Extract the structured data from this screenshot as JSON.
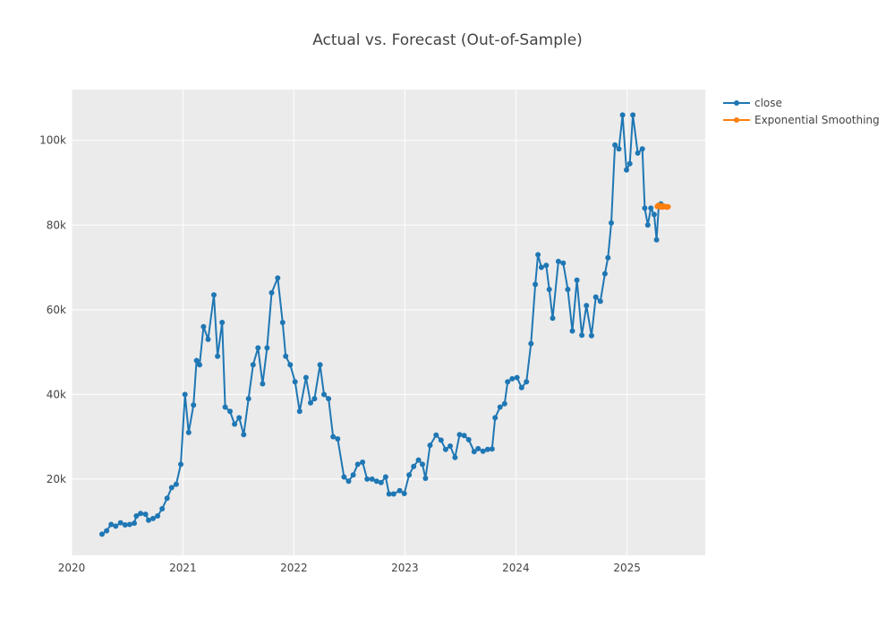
{
  "chart_data": {
    "type": "line",
    "title": "Actual vs. Forecast (Out-of-Sample)",
    "xlabel": "",
    "ylabel": "",
    "x_ticks": [
      "2020",
      "2021",
      "2022",
      "2023",
      "2024",
      "2025"
    ],
    "y_ticks": [
      "20k",
      "40k",
      "60k",
      "80k",
      "100k"
    ],
    "y_tick_values": [
      20000,
      40000,
      60000,
      80000,
      100000
    ],
    "xlim": [
      "2020-01-01",
      "2025-09-15"
    ],
    "ylim": [
      2000,
      112000
    ],
    "grid": true,
    "legend_position": "top-right",
    "series": [
      {
        "name": "close",
        "color": "#1f77b4",
        "mode": "lines+markers",
        "points": [
          [
            "2020-04-10",
            7000
          ],
          [
            "2020-04-25",
            7800
          ],
          [
            "2020-05-10",
            9300
          ],
          [
            "2020-05-25",
            8900
          ],
          [
            "2020-06-10",
            9700
          ],
          [
            "2020-06-25",
            9200
          ],
          [
            "2020-07-10",
            9300
          ],
          [
            "2020-07-25",
            9600
          ],
          [
            "2020-08-01",
            11300
          ],
          [
            "2020-08-15",
            11900
          ],
          [
            "2020-08-31",
            11700
          ],
          [
            "2020-09-10",
            10300
          ],
          [
            "2020-09-25",
            10700
          ],
          [
            "2020-10-10",
            11300
          ],
          [
            "2020-10-25",
            13000
          ],
          [
            "2020-11-10",
            15500
          ],
          [
            "2020-11-25",
            18000
          ],
          [
            "2020-12-10",
            18800
          ],
          [
            "2020-12-25",
            23500
          ],
          [
            "2021-01-08",
            40000
          ],
          [
            "2021-01-20",
            31000
          ],
          [
            "2021-02-05",
            37500
          ],
          [
            "2021-02-15",
            48000
          ],
          [
            "2021-02-25",
            47000
          ],
          [
            "2021-03-10",
            56000
          ],
          [
            "2021-03-25",
            53000
          ],
          [
            "2021-04-13",
            63500
          ],
          [
            "2021-04-25",
            49000
          ],
          [
            "2021-05-10",
            57000
          ],
          [
            "2021-05-20",
            37000
          ],
          [
            "2021-06-05",
            36000
          ],
          [
            "2021-06-20",
            33000
          ],
          [
            "2021-07-05",
            34500
          ],
          [
            "2021-07-20",
            30500
          ],
          [
            "2021-08-05",
            39000
          ],
          [
            "2021-08-20",
            47000
          ],
          [
            "2021-09-05",
            51000
          ],
          [
            "2021-09-20",
            42500
          ],
          [
            "2021-10-05",
            51000
          ],
          [
            "2021-10-20",
            64000
          ],
          [
            "2021-11-09",
            67500
          ],
          [
            "2021-11-25",
            57000
          ],
          [
            "2021-12-05",
            49000
          ],
          [
            "2021-12-20",
            47000
          ],
          [
            "2022-01-05",
            43000
          ],
          [
            "2022-01-20",
            36000
          ],
          [
            "2022-02-10",
            44000
          ],
          [
            "2022-02-25",
            38000
          ],
          [
            "2022-03-10",
            39000
          ],
          [
            "2022-03-28",
            47000
          ],
          [
            "2022-04-10",
            40000
          ],
          [
            "2022-04-25",
            39000
          ],
          [
            "2022-05-10",
            30000
          ],
          [
            "2022-05-25",
            29500
          ],
          [
            "2022-06-15",
            20500
          ],
          [
            "2022-06-30",
            19500
          ],
          [
            "2022-07-15",
            21000
          ],
          [
            "2022-07-30",
            23500
          ],
          [
            "2022-08-15",
            24000
          ],
          [
            "2022-08-30",
            20000
          ],
          [
            "2022-09-15",
            20000
          ],
          [
            "2022-09-30",
            19500
          ],
          [
            "2022-10-15",
            19200
          ],
          [
            "2022-10-30",
            20500
          ],
          [
            "2022-11-10",
            16500
          ],
          [
            "2022-11-25",
            16500
          ],
          [
            "2022-12-15",
            17300
          ],
          [
            "2022-12-30",
            16600
          ],
          [
            "2023-01-15",
            21000
          ],
          [
            "2023-01-30",
            23000
          ],
          [
            "2023-02-15",
            24500
          ],
          [
            "2023-02-28",
            23500
          ],
          [
            "2023-03-10",
            20200
          ],
          [
            "2023-03-25",
            28000
          ],
          [
            "2023-04-14",
            30400
          ],
          [
            "2023-04-30",
            29200
          ],
          [
            "2023-05-15",
            27000
          ],
          [
            "2023-05-30",
            27800
          ],
          [
            "2023-06-15",
            25100
          ],
          [
            "2023-06-30",
            30500
          ],
          [
            "2023-07-15",
            30300
          ],
          [
            "2023-07-30",
            29300
          ],
          [
            "2023-08-17",
            26500
          ],
          [
            "2023-08-30",
            27200
          ],
          [
            "2023-09-15",
            26600
          ],
          [
            "2023-09-30",
            27000
          ],
          [
            "2023-10-15",
            27100
          ],
          [
            "2023-10-25",
            34500
          ],
          [
            "2023-11-10",
            37000
          ],
          [
            "2023-11-25",
            37800
          ],
          [
            "2023-12-05",
            43000
          ],
          [
            "2023-12-20",
            43700
          ],
          [
            "2024-01-05",
            44000
          ],
          [
            "2024-01-20",
            41600
          ],
          [
            "2024-02-05",
            43000
          ],
          [
            "2024-02-20",
            52000
          ],
          [
            "2024-03-05",
            66000
          ],
          [
            "2024-03-14",
            73000
          ],
          [
            "2024-03-25",
            70000
          ],
          [
            "2024-04-10",
            70500
          ],
          [
            "2024-04-20",
            64800
          ],
          [
            "2024-05-01",
            58000
          ],
          [
            "2024-05-20",
            71400
          ],
          [
            "2024-06-05",
            71000
          ],
          [
            "2024-06-20",
            64800
          ],
          [
            "2024-07-05",
            55000
          ],
          [
            "2024-07-20",
            67000
          ],
          [
            "2024-08-05",
            54000
          ],
          [
            "2024-08-20",
            61000
          ],
          [
            "2024-09-06",
            53900
          ],
          [
            "2024-09-20",
            63000
          ],
          [
            "2024-10-05",
            62000
          ],
          [
            "2024-10-20",
            68500
          ],
          [
            "2024-10-30",
            72300
          ],
          [
            "2024-11-10",
            80500
          ],
          [
            "2024-11-22",
            98900
          ],
          [
            "2024-12-05",
            98000
          ],
          [
            "2024-12-17",
            106000
          ],
          [
            "2024-12-30",
            93000
          ],
          [
            "2025-01-10",
            94500
          ],
          [
            "2025-01-20",
            106000
          ],
          [
            "2025-02-05",
            97000
          ],
          [
            "2025-02-20",
            98000
          ],
          [
            "2025-02-28",
            84000
          ],
          [
            "2025-03-10",
            80000
          ],
          [
            "2025-03-20",
            84000
          ],
          [
            "2025-03-31",
            82500
          ],
          [
            "2025-04-08",
            76500
          ],
          [
            "2025-04-15",
            84500
          ],
          [
            "2025-04-22",
            85000
          ]
        ]
      },
      {
        "name": "Exponential Smoothing",
        "color": "#ff7f0e",
        "mode": "lines+markers",
        "points": [
          [
            "2025-04-10",
            84400
          ],
          [
            "2025-04-14",
            84700
          ],
          [
            "2025-04-18",
            84300
          ],
          [
            "2025-04-22",
            84600
          ],
          [
            "2025-04-26",
            84200
          ],
          [
            "2025-04-30",
            84500
          ],
          [
            "2025-05-04",
            84300
          ],
          [
            "2025-05-08",
            84400
          ],
          [
            "2025-05-12",
            84200
          ],
          [
            "2025-05-16",
            84300
          ]
        ]
      }
    ]
  }
}
